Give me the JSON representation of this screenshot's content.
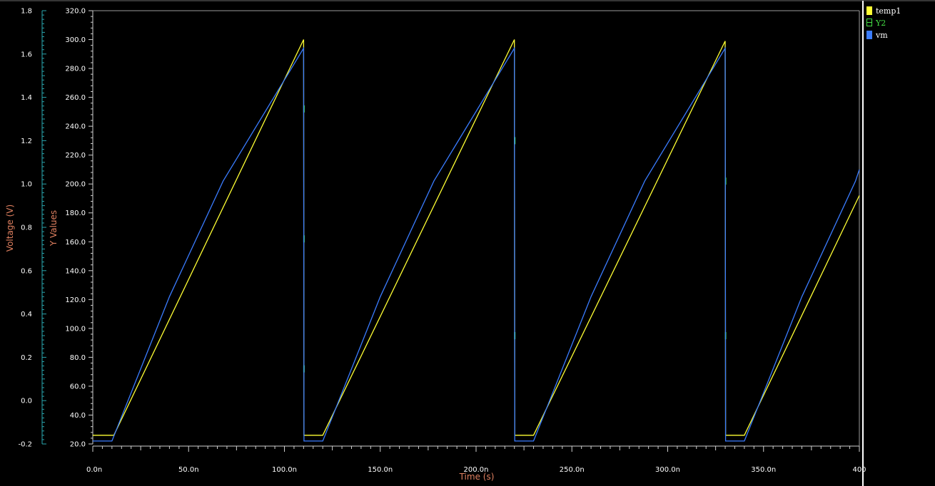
{
  "chart_data": {
    "type": "line",
    "xlabel": "Time (s)",
    "ylabel_left": "Voltage (V)",
    "ylabel_right": "Y Values",
    "x_unit": "ns",
    "xlim": [
      0,
      400
    ],
    "ylim_voltage": [
      -0.2,
      1.8
    ],
    "ylim_values": [
      20,
      320
    ],
    "grid": false,
    "legend_position": "right",
    "x_ticks": [
      "0.0n",
      "50.0n",
      "100.0n",
      "150.0n",
      "200.0n",
      "250.0n",
      "300.0n",
      "350.0n",
      "400"
    ],
    "x_tick_values": [
      0,
      50,
      100,
      150,
      200,
      250,
      300,
      350,
      400
    ],
    "voltage_ticks": [
      "-0.2",
      "0.0",
      "0.2",
      "0.4",
      "0.6",
      "0.8",
      "1.0",
      "1.2",
      "1.4",
      "1.6",
      "1.8"
    ],
    "voltage_tick_values": [
      -0.2,
      0,
      0.2,
      0.4,
      0.6,
      0.8,
      1.0,
      1.2,
      1.4,
      1.6,
      1.8
    ],
    "value_ticks": [
      "20.0",
      "40.0",
      "60.0",
      "80.0",
      "100.0",
      "120.0",
      "140.0",
      "160.0",
      "180.0",
      "200.0",
      "220.0",
      "240.0",
      "260.0",
      "280.0",
      "300.0",
      "320.0"
    ],
    "value_tick_values": [
      20,
      40,
      60,
      80,
      100,
      120,
      140,
      160,
      180,
      200,
      220,
      240,
      260,
      280,
      300,
      320
    ],
    "series": [
      {
        "name": "temp1",
        "color": "#ffff33",
        "axis": "values",
        "x": [
          0,
          11,
          110,
          110.2,
          120,
          220,
          220.2,
          230,
          330,
          330.2,
          340,
          400
        ],
        "y": [
          26,
          26,
          300,
          26,
          26,
          300,
          26,
          26,
          299,
          26,
          26,
          192
        ]
      },
      {
        "name": "Y2",
        "color": "#44dd44",
        "axis": "values",
        "legend_marker": "box",
        "x": [
          110.2,
          110.2,
          110.2,
          220.2,
          220.2,
          330.2,
          330.2
        ],
        "y": [
          252,
          162,
          72,
          230,
          95,
          202,
          95
        ]
      },
      {
        "name": "vm",
        "color": "#3a7cff",
        "axis": "values",
        "x": [
          0,
          10,
          40,
          68,
          110,
          110.2,
          120,
          150,
          178,
          220,
          220.2,
          230,
          260,
          288,
          330,
          330.2,
          340,
          370,
          398,
          400
        ],
        "y": [
          22,
          22,
          122,
          202,
          294,
          22,
          22,
          122,
          202,
          294,
          22,
          22,
          122,
          202,
          294,
          22,
          22,
          122,
          202,
          210
        ]
      }
    ]
  }
}
